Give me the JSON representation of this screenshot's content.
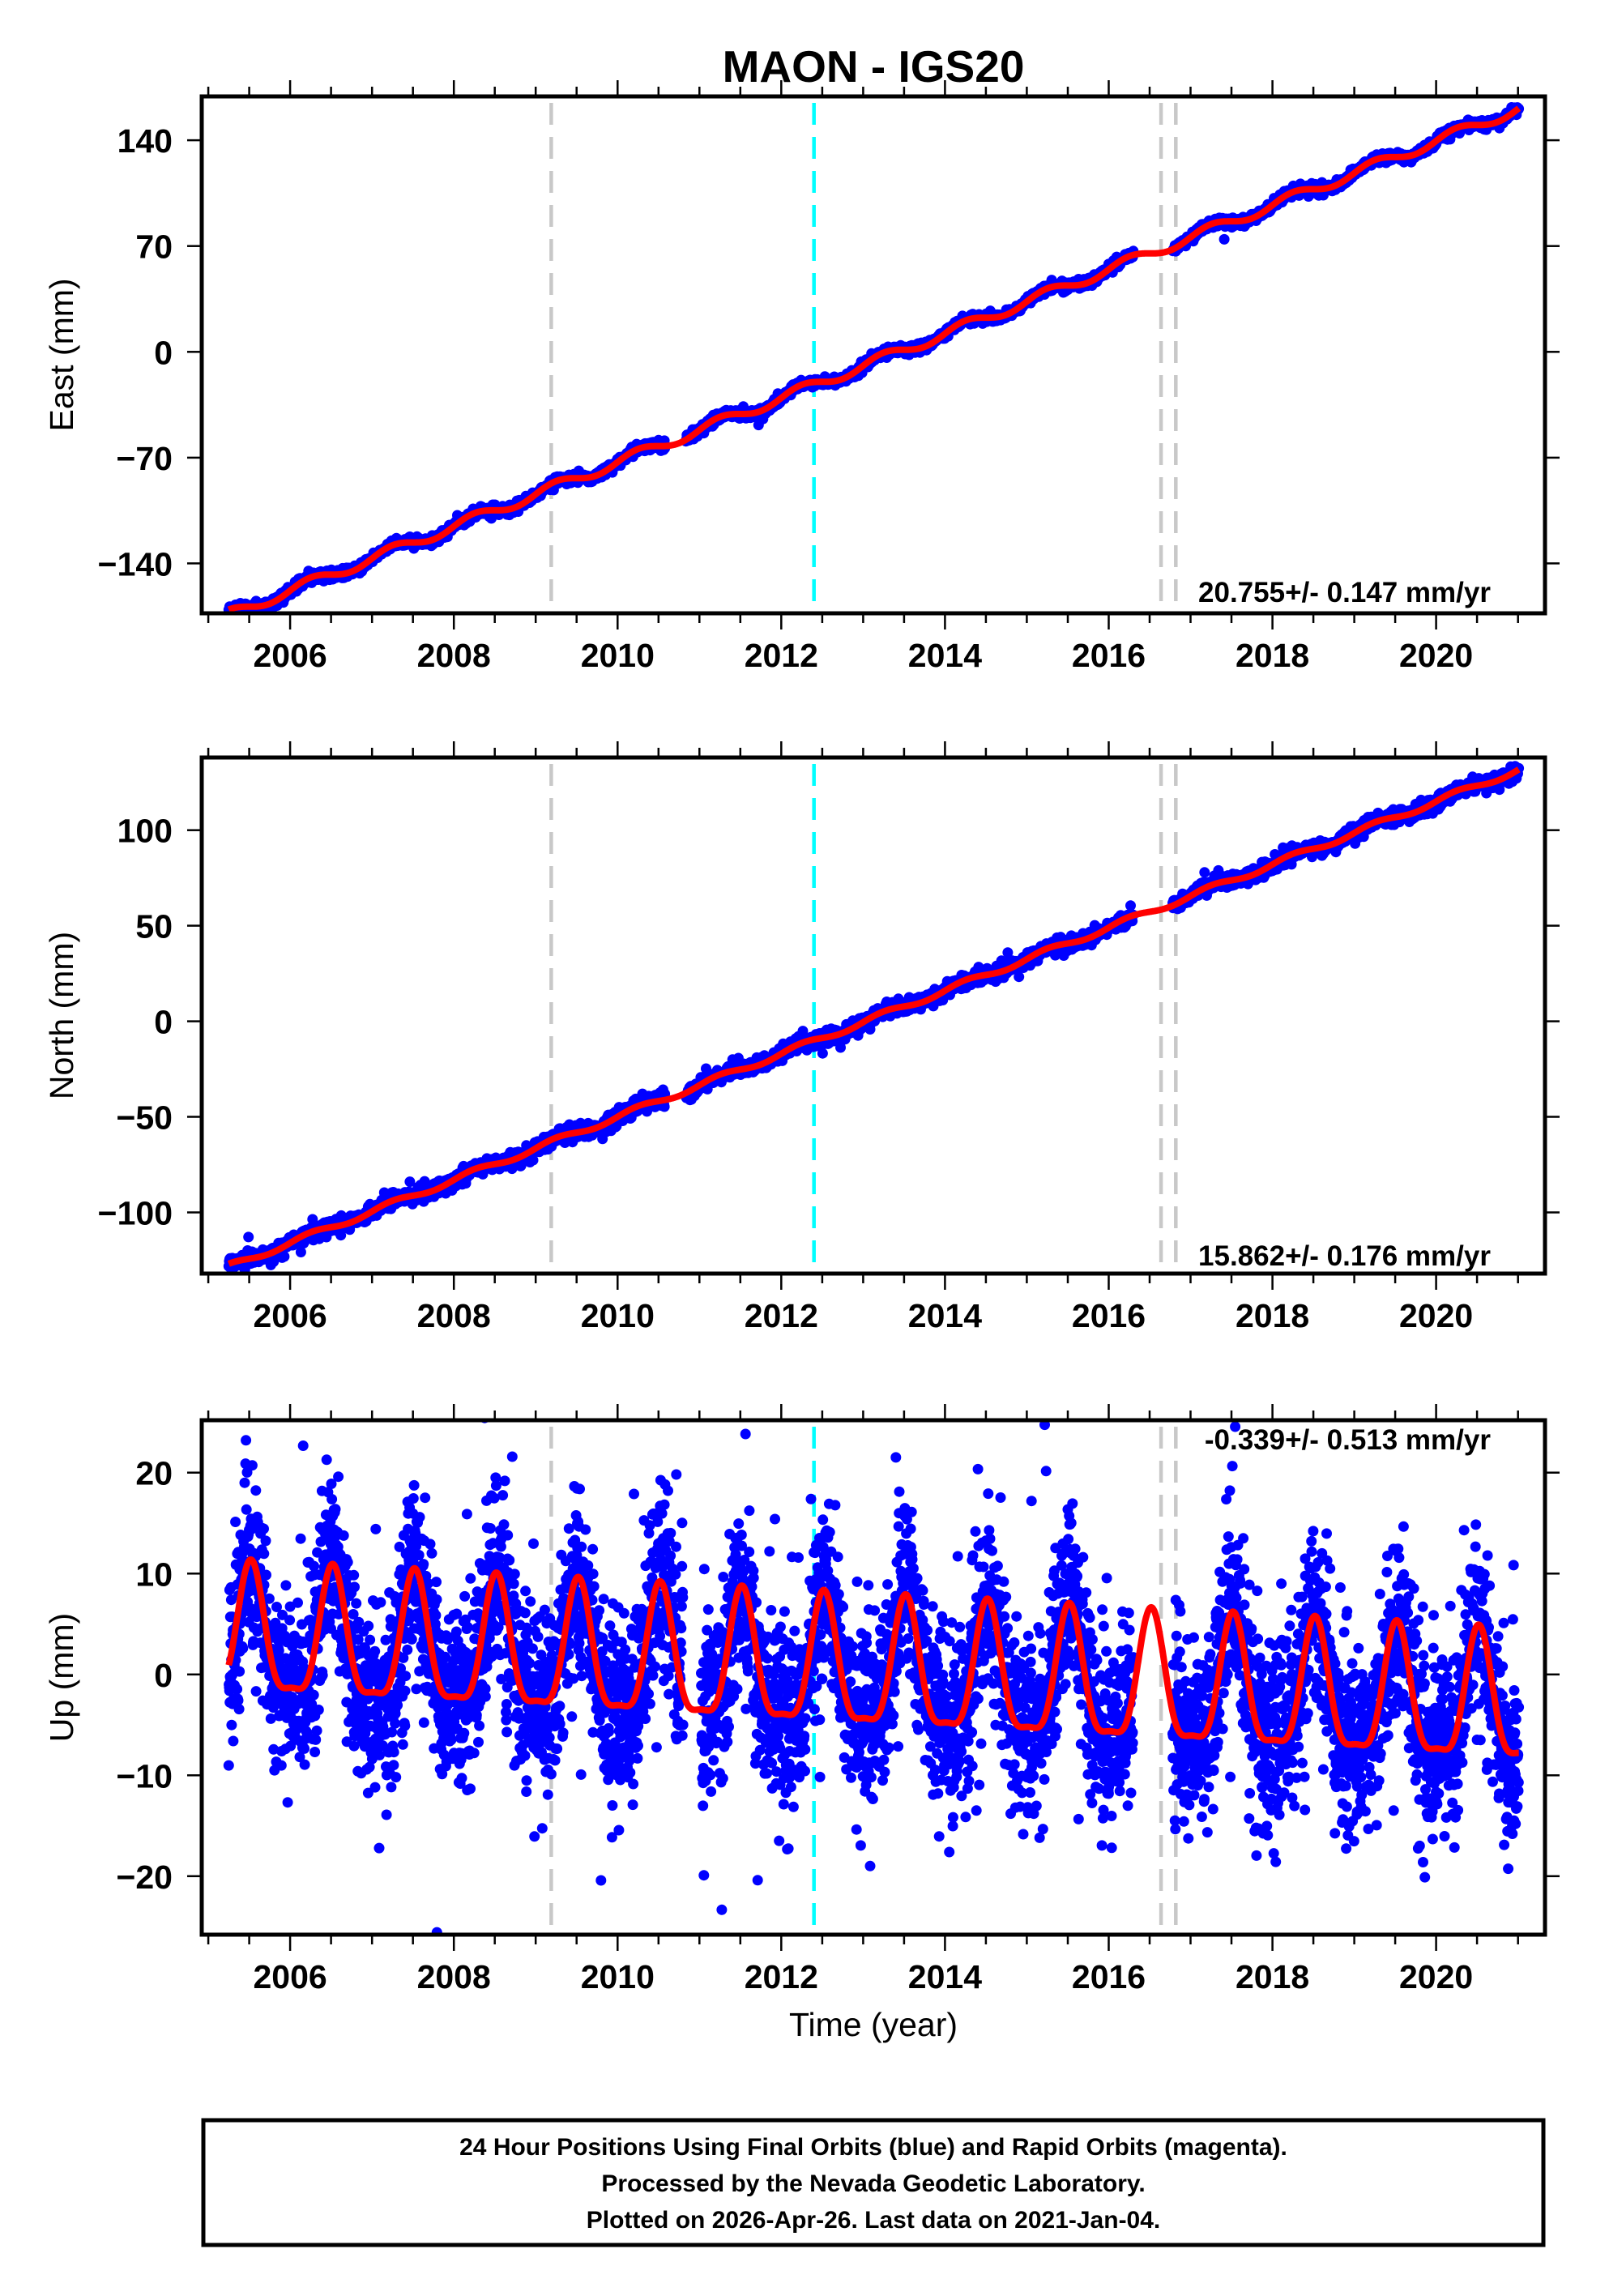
{
  "colors": {
    "final_orbits": "#0000ff",
    "rapid_orbits": "#ff00ff",
    "model_fit": "#ff0000",
    "event_gray": "#c8c8c8",
    "event_cyan": "#00ffff",
    "frame": "#000000"
  },
  "footer": {
    "line1": "24 Hour Positions Using Final Orbits (blue) and Rapid Orbits (magenta).",
    "line2": "Processed by the Nevada Geodetic Laboratory.",
    "line3": "Plotted on 2026-Apr-26. Last data on 2021-Jan-04."
  },
  "chart_data": [
    {
      "type": "scatter",
      "title": "MAON - IGS20",
      "xlabel": "",
      "ylabel": "East (mm)",
      "xlim": [
        2004.92,
        2021.33
      ],
      "ylim": [
        -173,
        169
      ],
      "grid": false,
      "x_ticks": [
        2006,
        2008,
        2010,
        2012,
        2014,
        2016,
        2018,
        2020
      ],
      "x_tick_labels": [
        "2006",
        "2008",
        "2010",
        "2012",
        "2014",
        "2016",
        "2018",
        "2020"
      ],
      "x_minor_tick_step": 0.5,
      "y_ticks": [
        -140,
        -70,
        0,
        70,
        140
      ],
      "y_tick_labels": [
        "−140",
        "−70",
        "0",
        "70",
        "140"
      ],
      "rate_label": "20.755+/- 0.147 mm/yr",
      "rate_label_position": "bottom-right",
      "event_lines": [
        {
          "x": 2009.19,
          "color": "#c8c8c8"
        },
        {
          "x": 2012.4,
          "color": "#00ffff"
        },
        {
          "x": 2016.64,
          "color": "#c8c8c8"
        },
        {
          "x": 2016.82,
          "color": "#c8c8c8"
        }
      ],
      "observations": {
        "color": "#0000ff",
        "t_start": 2005.25,
        "t_end": 2021.01,
        "gaps": [
          [
            2010.58,
            2010.83
          ],
          [
            2016.3,
            2016.78
          ]
        ],
        "noise_sd_mm": 1.6,
        "outlier_fraction": 0.01
      },
      "model": {
        "color": "#ff0000",
        "ref_year": 2006.0,
        "value_at_ref_mm": -158,
        "trend_mm_per_yr": 21.25,
        "annual_amp_mm": 3.4,
        "annual_peak_phase_yr": 0.25,
        "semiannual_amp_mm": 0
      },
      "fit_samples": {
        "x": [
          2006,
          2010,
          2014,
          2018,
          2020
        ],
        "y": [
          -158,
          -73,
          12,
          97,
          139.5
        ]
      }
    },
    {
      "type": "scatter",
      "xlabel": "",
      "ylabel": "North (mm)",
      "xlim": [
        2004.92,
        2021.33
      ],
      "ylim": [
        -132,
        138
      ],
      "grid": false,
      "x_ticks": [
        2006,
        2008,
        2010,
        2012,
        2014,
        2016,
        2018,
        2020
      ],
      "x_tick_labels": [
        "2006",
        "2008",
        "2010",
        "2012",
        "2014",
        "2016",
        "2018",
        "2020"
      ],
      "x_minor_tick_step": 0.5,
      "y_ticks": [
        -100,
        -50,
        0,
        50,
        100
      ],
      "y_tick_labels": [
        "−100",
        "−50",
        "0",
        "50",
        "100"
      ],
      "rate_label": "15.862+/- 0.176 mm/yr",
      "rate_label_position": "bottom-right",
      "event_lines": [
        {
          "x": 2009.19,
          "color": "#c8c8c8"
        },
        {
          "x": 2012.4,
          "color": "#00ffff"
        },
        {
          "x": 2016.64,
          "color": "#c8c8c8"
        },
        {
          "x": 2016.82,
          "color": "#c8c8c8"
        }
      ],
      "observations": {
        "color": "#0000ff",
        "t_start": 2005.25,
        "t_end": 2021.01,
        "gaps": [
          [
            2010.58,
            2010.83
          ],
          [
            2016.3,
            2016.78
          ]
        ],
        "noise_sd_mm": 2.0,
        "outlier_fraction": 0.03
      },
      "model": {
        "color": "#ff0000",
        "ref_year": 2006.0,
        "value_at_ref_mm": -116,
        "trend_mm_per_yr": 16.5,
        "annual_amp_mm": 1.5,
        "annual_peak_phase_yr": 0.25,
        "semiannual_amp_mm": 0
      },
      "fit_samples": {
        "x": [
          2006,
          2010,
          2014,
          2018,
          2020
        ],
        "y": [
          -116,
          -50,
          16,
          82,
          115
        ]
      }
    },
    {
      "type": "scatter",
      "xlabel": "Time (year)",
      "ylabel": "Up (mm)",
      "xlim": [
        2004.92,
        2021.33
      ],
      "ylim": [
        -25.8,
        25.2
      ],
      "grid": false,
      "x_ticks": [
        2006,
        2008,
        2010,
        2012,
        2014,
        2016,
        2018,
        2020
      ],
      "x_tick_labels": [
        "2006",
        "2008",
        "2010",
        "2012",
        "2014",
        "2016",
        "2018",
        "2020"
      ],
      "x_minor_tick_step": 0.5,
      "y_ticks": [
        -20,
        -10,
        0,
        10,
        20
      ],
      "y_tick_labels": [
        "−20",
        "−10",
        "0",
        "10",
        "20"
      ],
      "rate_label": "-0.339+/- 0.513 mm/yr",
      "rate_label_position": "top-right",
      "event_lines": [
        {
          "x": 2009.19,
          "color": "#c8c8c8"
        },
        {
          "x": 2012.4,
          "color": "#00ffff"
        },
        {
          "x": 2016.64,
          "color": "#c8c8c8"
        },
        {
          "x": 2016.82,
          "color": "#c8c8c8"
        }
      ],
      "observations": {
        "color": "#0000ff",
        "t_start": 2005.25,
        "t_end": 2021.01,
        "gaps": [
          [
            2010.8,
            2011.02
          ],
          [
            2016.3,
            2016.78
          ]
        ],
        "noise_sd_mm": 4.2,
        "outlier_fraction": 0.05
      },
      "model": {
        "color": "#ff0000",
        "ref_year": 2005.25,
        "value_at_ref_mm": 3.45,
        "trend_mm_per_yr": -0.43,
        "annual_amp_mm": 6.25,
        "annual_peak_phase_yr": 0.52,
        "semiannual_amp_mm": 1.8
      },
      "fit_samples": {
        "x": [
          2005.52,
          2010.52,
          2015.52,
          2020.52
        ],
        "y": [
          11.4,
          9.3,
          7.1,
          4.9
        ]
      }
    }
  ]
}
